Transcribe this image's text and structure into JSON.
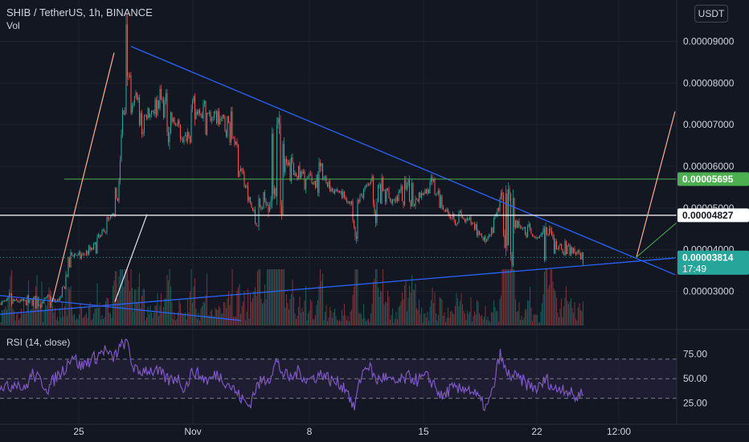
{
  "header": {
    "symbol_line": "SHIB / TetherUS, 1h, BINANCE",
    "volume_label": "Vol",
    "rsi_label": "RSI (14, close)",
    "currency_button": "USDT"
  },
  "colors": {
    "background": "#131722",
    "up": "#26a69a",
    "down": "#ef5350",
    "trendline": "#2962ff",
    "resistance": "#4caf50",
    "white_level": "#ffffff",
    "arrow_up": "#ffab91",
    "rsi_line": "#7e57c2",
    "current_price": "#26a69a"
  },
  "chart_data": [
    {
      "type": "candlestick",
      "symbol": "SHIB / TetherUS",
      "interval": "1h",
      "exchange": "BINANCE",
      "y_ticks": [
        "0.00009000",
        "0.00008000",
        "0.00007000",
        "0.00006000",
        "0.00005000",
        "0.00004000",
        "0.00003000"
      ],
      "y_range": [
        2.2e-05,
        9.3e-05
      ],
      "x_ticks": [
        "25",
        "Nov",
        "8",
        "15",
        "22",
        "12:00"
      ],
      "levels": [
        {
          "value": "0.00005695",
          "kind": "resistance"
        },
        {
          "value": "0.00004827",
          "kind": "level"
        },
        {
          "value": "0.00003814",
          "kind": "current"
        }
      ],
      "countdown": "17:49",
      "close_path": [
        [
          0,
          2.71e-05
        ],
        [
          10,
          2.73e-05
        ],
        [
          20,
          2.77e-05
        ],
        [
          30,
          2.74e-05
        ],
        [
          40,
          2.76e-05
        ],
        [
          50,
          2.75e-05
        ],
        [
          60,
          2.78e-05
        ],
        [
          70,
          2.76e-05
        ],
        [
          76,
          2.85e-05
        ],
        [
          82,
          3.3e-05
        ],
        [
          90,
          3.9e-05
        ],
        [
          100,
          3.85e-05
        ],
        [
          110,
          3.95e-05
        ],
        [
          120,
          4.1e-05
        ],
        [
          130,
          4.5e-05
        ],
        [
          140,
          4.8e-05
        ],
        [
          148,
          5.4e-05
        ],
        [
          152,
          7e-05
        ],
        [
          156,
          8.2e-05
        ],
        [
          160,
          8.6e-05
        ],
        [
          164,
          7.3e-05
        ],
        [
          170,
          7.8e-05
        ],
        [
          176,
          7e-05
        ],
        [
          184,
          7.3e-05
        ],
        [
          192,
          7.4e-05
        ],
        [
          200,
          7.6e-05
        ],
        [
          210,
          7.2e-05
        ],
        [
          220,
          7e-05
        ],
        [
          230,
          6.6e-05
        ],
        [
          240,
          7.2e-05
        ],
        [
          250,
          7.4e-05
        ],
        [
          260,
          7.2e-05
        ],
        [
          270,
          7.2e-05
        ],
        [
          280,
          7e-05
        ],
        [
          290,
          6.8e-05
        ],
        [
          300,
          5.9e-05
        ],
        [
          310,
          5.2e-05
        ],
        [
          318,
          4.7e-05
        ],
        [
          326,
          5e-05
        ],
        [
          336,
          5.6e-05
        ],
        [
          344,
          6.3e-05
        ],
        [
          352,
          6e-05
        ],
        [
          362,
          5.9e-05
        ],
        [
          372,
          5.8e-05
        ],
        [
          382,
          5.7e-05
        ],
        [
          392,
          5.6e-05
        ],
        [
          402,
          5.7e-05
        ],
        [
          412,
          5.5e-05
        ],
        [
          422,
          5.4e-05
        ],
        [
          432,
          5.2e-05
        ],
        [
          442,
          4.9e-05
        ],
        [
          450,
          5.3e-05
        ],
        [
          458,
          5.6e-05
        ],
        [
          468,
          5.4e-05
        ],
        [
          478,
          5.3e-05
        ],
        [
          490,
          5.2e-05
        ],
        [
          500,
          5.3e-05
        ],
        [
          510,
          5.4e-05
        ],
        [
          520,
          5.3e-05
        ],
        [
          530,
          5.4e-05
        ],
        [
          540,
          5.5e-05
        ],
        [
          548,
          5.2e-05
        ],
        [
          556,
          4.9e-05
        ],
        [
          566,
          4.8e-05
        ],
        [
          578,
          4.7e-05
        ],
        [
          590,
          4.6e-05
        ],
        [
          600,
          4.3e-05
        ],
        [
          606,
          4.2e-05
        ],
        [
          614,
          4.5e-05
        ],
        [
          622,
          5.1e-05
        ],
        [
          630,
          4.8e-05
        ],
        [
          640,
          4.7e-05
        ],
        [
          650,
          4.5e-05
        ],
        [
          660,
          4.4e-05
        ],
        [
          670,
          4.3e-05
        ],
        [
          680,
          4.2e-05
        ],
        [
          690,
          4.1e-05
        ],
        [
          700,
          4e-05
        ],
        [
          710,
          4e-05
        ],
        [
          718,
          3.9e-05
        ],
        [
          726,
          3.81e-05
        ]
      ],
      "trendlines": [
        {
          "from": [
            163,
            8.88e-05
          ],
          "to": [
            840,
            3.4e-05
          ],
          "color": "trendline"
        },
        {
          "from": [
            0,
            2.45e-05
          ],
          "to": [
            840,
            3.8e-05
          ],
          "color": "trendline"
        },
        {
          "from": [
            0,
            2.9e-05
          ],
          "to": [
            300,
            2.3e-05
          ],
          "color": "trendline"
        }
      ]
    },
    {
      "type": "line",
      "title": "RSI (14, close)",
      "y_ticks": [
        "75.00",
        "50.00",
        "25.00"
      ],
      "y_range": [
        10,
        92
      ],
      "bands": [
        70,
        50,
        30
      ],
      "values": [
        [
          0,
          45
        ],
        [
          10,
          40
        ],
        [
          20,
          48
        ],
        [
          30,
          38
        ],
        [
          40,
          55
        ],
        [
          50,
          48
        ],
        [
          60,
          40
        ],
        [
          70,
          52
        ],
        [
          80,
          60
        ],
        [
          90,
          75
        ],
        [
          100,
          62
        ],
        [
          110,
          68
        ],
        [
          120,
          72
        ],
        [
          130,
          80
        ],
        [
          140,
          70
        ],
        [
          150,
          82
        ],
        [
          158,
          90
        ],
        [
          164,
          65
        ],
        [
          172,
          55
        ],
        [
          180,
          60
        ],
        [
          190,
          58
        ],
        [
          200,
          55
        ],
        [
          210,
          48
        ],
        [
          220,
          52
        ],
        [
          230,
          40
        ],
        [
          240,
          58
        ],
        [
          250,
          52
        ],
        [
          260,
          48
        ],
        [
          270,
          55
        ],
        [
          280,
          48
        ],
        [
          290,
          40
        ],
        [
          300,
          30
        ],
        [
          310,
          22
        ],
        [
          318,
          40
        ],
        [
          326,
          48
        ],
        [
          336,
          52
        ],
        [
          344,
          68
        ],
        [
          352,
          55
        ],
        [
          362,
          50
        ],
        [
          372,
          58
        ],
        [
          382,
          48
        ],
        [
          392,
          52
        ],
        [
          402,
          55
        ],
        [
          412,
          48
        ],
        [
          422,
          45
        ],
        [
          432,
          40
        ],
        [
          440,
          18
        ],
        [
          450,
          55
        ],
        [
          458,
          65
        ],
        [
          468,
          48
        ],
        [
          478,
          52
        ],
        [
          490,
          45
        ],
        [
          500,
          48
        ],
        [
          510,
          52
        ],
        [
          520,
          48
        ],
        [
          530,
          52
        ],
        [
          540,
          45
        ],
        [
          550,
          30
        ],
        [
          560,
          40
        ],
        [
          570,
          38
        ],
        [
          580,
          42
        ],
        [
          590,
          35
        ],
        [
          600,
          25
        ],
        [
          606,
          20
        ],
        [
          614,
          40
        ],
        [
          622,
          76
        ],
        [
          630,
          55
        ],
        [
          640,
          52
        ],
        [
          650,
          48
        ],
        [
          660,
          42
        ],
        [
          670,
          40
        ],
        [
          680,
          50
        ],
        [
          690,
          38
        ],
        [
          700,
          42
        ],
        [
          710,
          35
        ],
        [
          718,
          30
        ],
        [
          726,
          40
        ]
      ]
    }
  ]
}
